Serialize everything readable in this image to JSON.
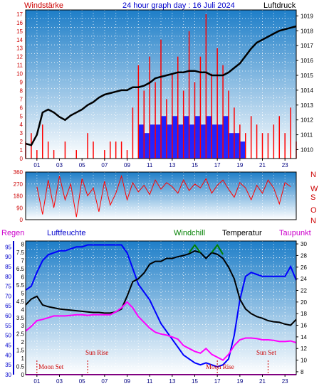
{
  "header": {
    "title": "24 hour graph day : 16 Juli 2024",
    "left_label": "Windstärke",
    "right_label": "Luftdruck"
  },
  "colors": {
    "wind_speed": "#ff0000",
    "wind_direction": "#ff0000",
    "wind_gust_bars": "#0000ff",
    "pressure": "#000000",
    "rain": "#ff00ff",
    "humidity": "#0000ff",
    "windchill": "#008000",
    "temperature": "#000000",
    "dewpoint": "#ff00ff",
    "panel_top": "#1e7ec8",
    "panel_bottom": "#ffffff"
  },
  "compass_labels": [
    "N",
    "W",
    "S",
    "O",
    "N"
  ],
  "bottom_legend": {
    "rain": "Regen",
    "humidity": "Luftfeuchte",
    "windchill": "Windchill",
    "temperature": "Temperatur",
    "dewpoint": "Taupunkt"
  },
  "annotations": {
    "moon_set": "Moon Set",
    "sun_rise": "Sun Rise",
    "moon_rise": "Moon Rise",
    "sun_set": "Sun Set"
  },
  "chart_data": [
    {
      "id": "wind_pressure",
      "type": "line",
      "x_ticks": [
        "01",
        "03",
        "05",
        "07",
        "09",
        "11",
        "13",
        "15",
        "17",
        "19",
        "21",
        "23"
      ],
      "y_left_ticks": [
        0,
        1,
        2,
        3,
        4,
        5,
        6,
        7,
        8,
        9,
        10,
        11,
        12,
        13,
        14,
        15,
        16,
        17
      ],
      "y_left_range": [
        0,
        17.5
      ],
      "y_right_ticks": [
        1010,
        1011,
        1012,
        1013,
        1014,
        1015,
        1016,
        1017,
        1018,
        1019
      ],
      "y_right_range": [
        1009.4,
        1019.4
      ],
      "x_range": [
        0,
        24
      ],
      "pressure": {
        "x": [
          0,
          0.5,
          1,
          1.5,
          2,
          2.5,
          3,
          3.5,
          4,
          4.5,
          5,
          5.5,
          6,
          6.5,
          7,
          7.5,
          8,
          8.5,
          9,
          9.5,
          10,
          10.5,
          11,
          11.5,
          12,
          12.5,
          13,
          13.5,
          14,
          14.5,
          15,
          15.5,
          16,
          16.5,
          17,
          17.5,
          18,
          18.5,
          19,
          19.5,
          20,
          20.5,
          21,
          21.5,
          22,
          22.5,
          23,
          23.5,
          24
        ],
        "values": [
          1010.4,
          1010.3,
          1011.0,
          1012.5,
          1012.7,
          1012.5,
          1012.2,
          1012.0,
          1012.3,
          1012.5,
          1012.7,
          1013.0,
          1013.2,
          1013.5,
          1013.7,
          1013.8,
          1013.9,
          1014.0,
          1014.0,
          1014.2,
          1014.2,
          1014.3,
          1014.5,
          1014.8,
          1014.9,
          1015.0,
          1015.1,
          1015.2,
          1015.2,
          1015.3,
          1015.3,
          1015.2,
          1015.2,
          1015.0,
          1015.0,
          1015.0,
          1015.2,
          1015.5,
          1015.8,
          1016.3,
          1016.8,
          1017.2,
          1017.4,
          1017.6,
          1017.8,
          1018.0,
          1018.1,
          1018.2,
          1018.3
        ]
      },
      "wind_speed": {
        "x": [
          0,
          0.5,
          1,
          1.5,
          2,
          2.5,
          3,
          3.5,
          4,
          4.5,
          5,
          5.5,
          6,
          6.5,
          7,
          7.5,
          8,
          8.5,
          9,
          9.5,
          10,
          10.5,
          11,
          11.5,
          12,
          12.5,
          13,
          13.5,
          14,
          14.5,
          15,
          15.5,
          16,
          16.5,
          17,
          17.5,
          18,
          18.5,
          19,
          19.5,
          20,
          20.5,
          21,
          21.5,
          22,
          22.5,
          23,
          23.5,
          24
        ],
        "values": [
          2,
          3,
          1,
          4,
          2,
          1,
          0,
          2,
          0,
          1,
          0,
          3,
          2,
          0,
          1,
          2,
          2,
          2,
          1,
          6,
          11,
          8,
          12,
          9,
          14,
          7,
          10,
          12,
          8,
          15,
          9,
          12,
          17,
          10,
          13,
          11,
          8,
          6,
          4,
          3,
          5,
          4,
          3,
          3,
          4,
          5,
          3,
          6,
          2
        ]
      },
      "wind_gust_bars": {
        "x": [
          10,
          10.5,
          11,
          11.5,
          12,
          12.5,
          13,
          13.5,
          14,
          14.5,
          15,
          15.5,
          16,
          16.5,
          17,
          17.5,
          18,
          18.5,
          19
        ],
        "values": [
          4,
          3,
          4,
          4,
          5,
          4,
          5,
          4,
          5,
          4,
          5,
          4,
          5,
          4,
          4,
          5,
          3,
          3,
          2
        ]
      }
    },
    {
      "id": "wind_direction",
      "type": "line",
      "x_range": [
        0,
        24
      ],
      "y_ticks": [
        0,
        90,
        180,
        270,
        360
      ],
      "y_range": [
        0,
        360
      ],
      "x": [
        1,
        1.5,
        2,
        2.5,
        3,
        3.5,
        4,
        4.5,
        5,
        5.5,
        6,
        6.5,
        7,
        7.5,
        8,
        8.5,
        9,
        9.5,
        10,
        10.5,
        11,
        11.5,
        12,
        12.5,
        13,
        13.5,
        14,
        14.5,
        15,
        15.5,
        16,
        16.5,
        17,
        17.5,
        18,
        18.5,
        19,
        19.5,
        20,
        20.5,
        21,
        21.5,
        22,
        22.5,
        23,
        23.5
      ],
      "values": [
        250,
        40,
        300,
        90,
        330,
        150,
        270,
        20,
        310,
        180,
        240,
        60,
        290,
        110,
        200,
        330,
        150,
        280,
        210,
        260,
        190,
        300,
        230,
        280,
        250,
        200,
        300,
        220,
        270,
        240,
        310,
        200,
        260,
        300,
        230,
        170,
        280,
        240,
        150,
        260,
        200,
        300,
        240,
        120,
        280,
        250
      ]
    },
    {
      "id": "temperature_humidity",
      "type": "line",
      "x_ticks": [
        "01",
        "03",
        "05",
        "07",
        "09",
        "11",
        "13",
        "15",
        "17",
        "19",
        "21",
        "23"
      ],
      "x_range": [
        0,
        24
      ],
      "y_left_outer_ticks": [
        30,
        35,
        40,
        45,
        50,
        55,
        60,
        65,
        70,
        75,
        80,
        85,
        90,
        95
      ],
      "y_left_outer_range": [
        30,
        98
      ],
      "y_left_inner_ticks": [
        0,
        0.5,
        1,
        1.5,
        2,
        2.5,
        3,
        3.5,
        4,
        4.5,
        5,
        5.5,
        6,
        6.5,
        7,
        7.5,
        8
      ],
      "y_left_inner_range": [
        0,
        8.2
      ],
      "y_right_ticks": [
        8,
        10,
        12,
        14,
        16,
        18,
        20,
        22,
        24,
        26,
        28,
        30
      ],
      "y_right_range": [
        7.5,
        30.5
      ],
      "x": [
        0,
        0.5,
        1,
        1.5,
        2,
        2.5,
        3,
        3.5,
        4,
        4.5,
        5,
        5.5,
        6,
        6.5,
        7,
        7.5,
        8,
        8.5,
        9,
        9.5,
        10,
        10.5,
        11,
        11.5,
        12,
        12.5,
        13,
        13.5,
        14,
        14.5,
        15,
        15.5,
        16,
        16.5,
        17,
        17.5,
        18,
        18.5,
        19,
        19.5,
        20,
        20.5,
        21,
        21.5,
        22,
        22.5,
        23,
        23.5,
        24
      ],
      "series": [
        {
          "key": "humidity",
          "axis": "left_outer",
          "values": [
            73,
            75,
            82,
            88,
            91,
            92,
            93,
            93,
            94,
            95,
            95,
            96,
            96,
            96,
            96,
            96,
            96,
            96,
            92,
            84,
            76,
            72,
            68,
            62,
            56,
            52,
            48,
            44,
            40,
            38,
            36,
            35,
            36,
            35,
            34,
            35,
            38,
            50,
            68,
            80,
            82,
            81,
            80,
            80,
            80,
            80,
            80,
            85,
            78
          ]
        },
        {
          "key": "temperature",
          "axis": "right",
          "values": [
            19.5,
            20.5,
            21.0,
            19.5,
            19.2,
            19.0,
            18.8,
            18.7,
            18.6,
            18.5,
            18.4,
            18.3,
            18.2,
            18.2,
            18.1,
            18.1,
            18.3,
            18.8,
            21,
            23.5,
            24,
            25,
            26.5,
            27,
            27,
            27.5,
            27.5,
            27.8,
            28,
            28.3,
            28.8,
            28.5,
            27.5,
            28.5,
            28.2,
            27.5,
            26,
            24,
            20.5,
            18.8,
            18,
            17.5,
            17.2,
            16.8,
            16.6,
            16.5,
            16.2,
            16.0,
            17.0
          ]
        },
        {
          "key": "windchill",
          "axis": "right",
          "values": [
            null,
            null,
            null,
            null,
            null,
            null,
            null,
            null,
            null,
            null,
            null,
            null,
            null,
            null,
            null,
            null,
            null,
            null,
            null,
            null,
            null,
            null,
            null,
            null,
            null,
            null,
            null,
            null,
            null,
            28.5,
            29.8,
            28.5,
            null,
            28.5,
            29.8,
            28.2,
            null,
            null,
            null,
            null,
            null,
            null,
            null,
            null,
            null,
            null,
            null,
            null,
            null
          ]
        },
        {
          "key": "dewpoint",
          "axis": "right",
          "values": [
            15,
            15.8,
            16.8,
            17.0,
            17.3,
            17.6,
            17.6,
            17.6,
            17.7,
            17.8,
            17.8,
            17.7,
            17.8,
            17.8,
            17.8,
            17.8,
            18.3,
            19.0,
            20.0,
            19.0,
            17.5,
            16.5,
            15.5,
            14.8,
            14.5,
            14.3,
            14.0,
            13.6,
            12.5,
            12.0,
            11.5,
            11.2,
            12.0,
            11.0,
            10.5,
            10.0,
            11.0,
            12.5,
            13.5,
            13.8,
            13.8,
            13.7,
            13.5,
            13.5,
            13.4,
            13.2,
            13.2,
            13.3,
            13.0
          ]
        },
        {
          "key": "rain",
          "axis": "left_inner",
          "values": [
            0,
            0,
            0,
            0,
            0,
            0,
            0,
            0,
            0,
            0,
            0,
            0,
            0,
            0,
            0,
            0,
            0,
            0,
            0,
            0,
            0,
            0,
            0,
            0,
            0,
            0,
            0,
            0,
            0,
            0,
            0,
            0,
            0,
            0,
            0,
            0,
            0,
            0,
            0,
            0,
            0,
            0,
            0,
            0,
            0,
            0,
            0,
            0,
            0
          ]
        }
      ]
    }
  ]
}
